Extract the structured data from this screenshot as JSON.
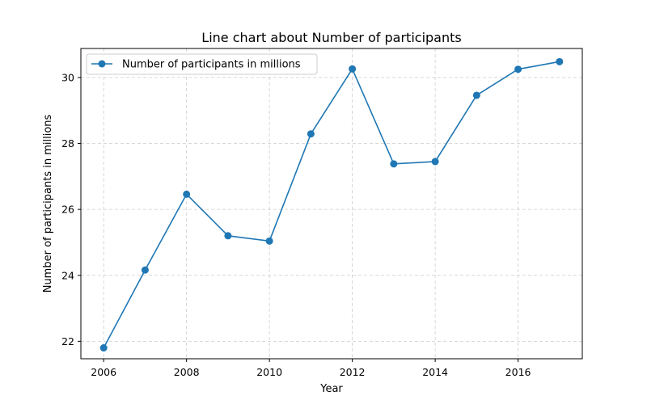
{
  "chart_data": {
    "type": "line",
    "title": "Line chart about Number of participants",
    "xlabel": "Year",
    "ylabel": "Number of participants in millions",
    "x": [
      2006,
      2007,
      2008,
      2009,
      2010,
      2011,
      2012,
      2013,
      2014,
      2015,
      2016,
      2017
    ],
    "series": [
      {
        "name": "Number of participants in millions",
        "values": [
          21.8,
          24.16,
          26.46,
          25.2,
          25.04,
          28.29,
          30.26,
          27.38,
          27.45,
          29.46,
          30.25,
          30.48
        ],
        "color": "#1f77b4"
      }
    ],
    "xlim": [
      2005.45,
      2017.55
    ],
    "ylim": [
      21.47,
      30.88
    ],
    "xticks": [
      2006,
      2008,
      2010,
      2012,
      2014,
      2016
    ],
    "yticks": [
      22,
      24,
      26,
      28,
      30
    ],
    "grid": true,
    "legend": "top-left"
  }
}
